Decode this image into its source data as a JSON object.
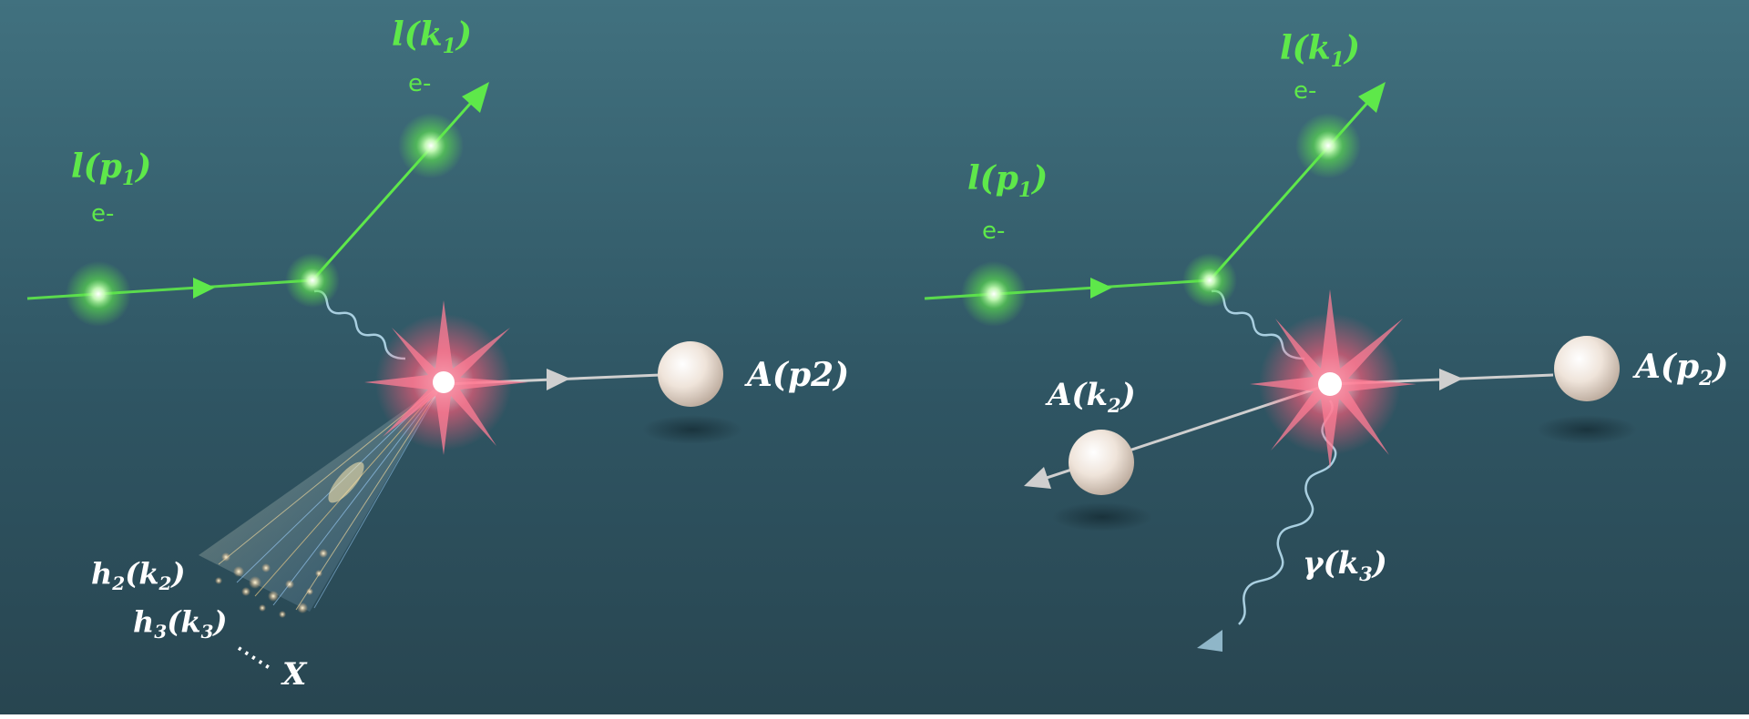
{
  "colors": {
    "bg_top": "#3f6f80",
    "bg_bottom": "#284550",
    "lepton": "#5ee84a",
    "photon": "#a9cfe0",
    "flash": "#ff5c7a",
    "nucleus": "#efe4da"
  },
  "left_panel": {
    "incoming_lepton": {
      "name": "l(p",
      "sub": "1",
      "close": ")",
      "charge": "e-"
    },
    "outgoing_lepton": {
      "name": "l(k",
      "sub": "1",
      "close": ")",
      "charge": "e-"
    },
    "nucleus": {
      "label": "A(p2)"
    },
    "hadrons": [
      {
        "h": "h",
        "hsub": "2",
        "mid": "(k",
        "ksub": "2",
        "close": ")"
      },
      {
        "h": "h",
        "hsub": "3",
        "mid": "(k",
        "ksub": "3",
        "close": ")"
      }
    ],
    "remainder": "X"
  },
  "right_panel": {
    "incoming_lepton": {
      "name": "l(p",
      "sub": "1",
      "close": ")",
      "charge": "e-"
    },
    "outgoing_lepton": {
      "name": "l(k",
      "sub": "1",
      "close": ")",
      "charge": "e-"
    },
    "nucleus_in": {
      "name": "A(p",
      "sub": "2",
      "close": ")"
    },
    "nucleus_out": {
      "name": "A(k",
      "sub": "2",
      "close": ")"
    },
    "photon": {
      "name": "γ(k",
      "sub": "3",
      "close": ")"
    }
  }
}
